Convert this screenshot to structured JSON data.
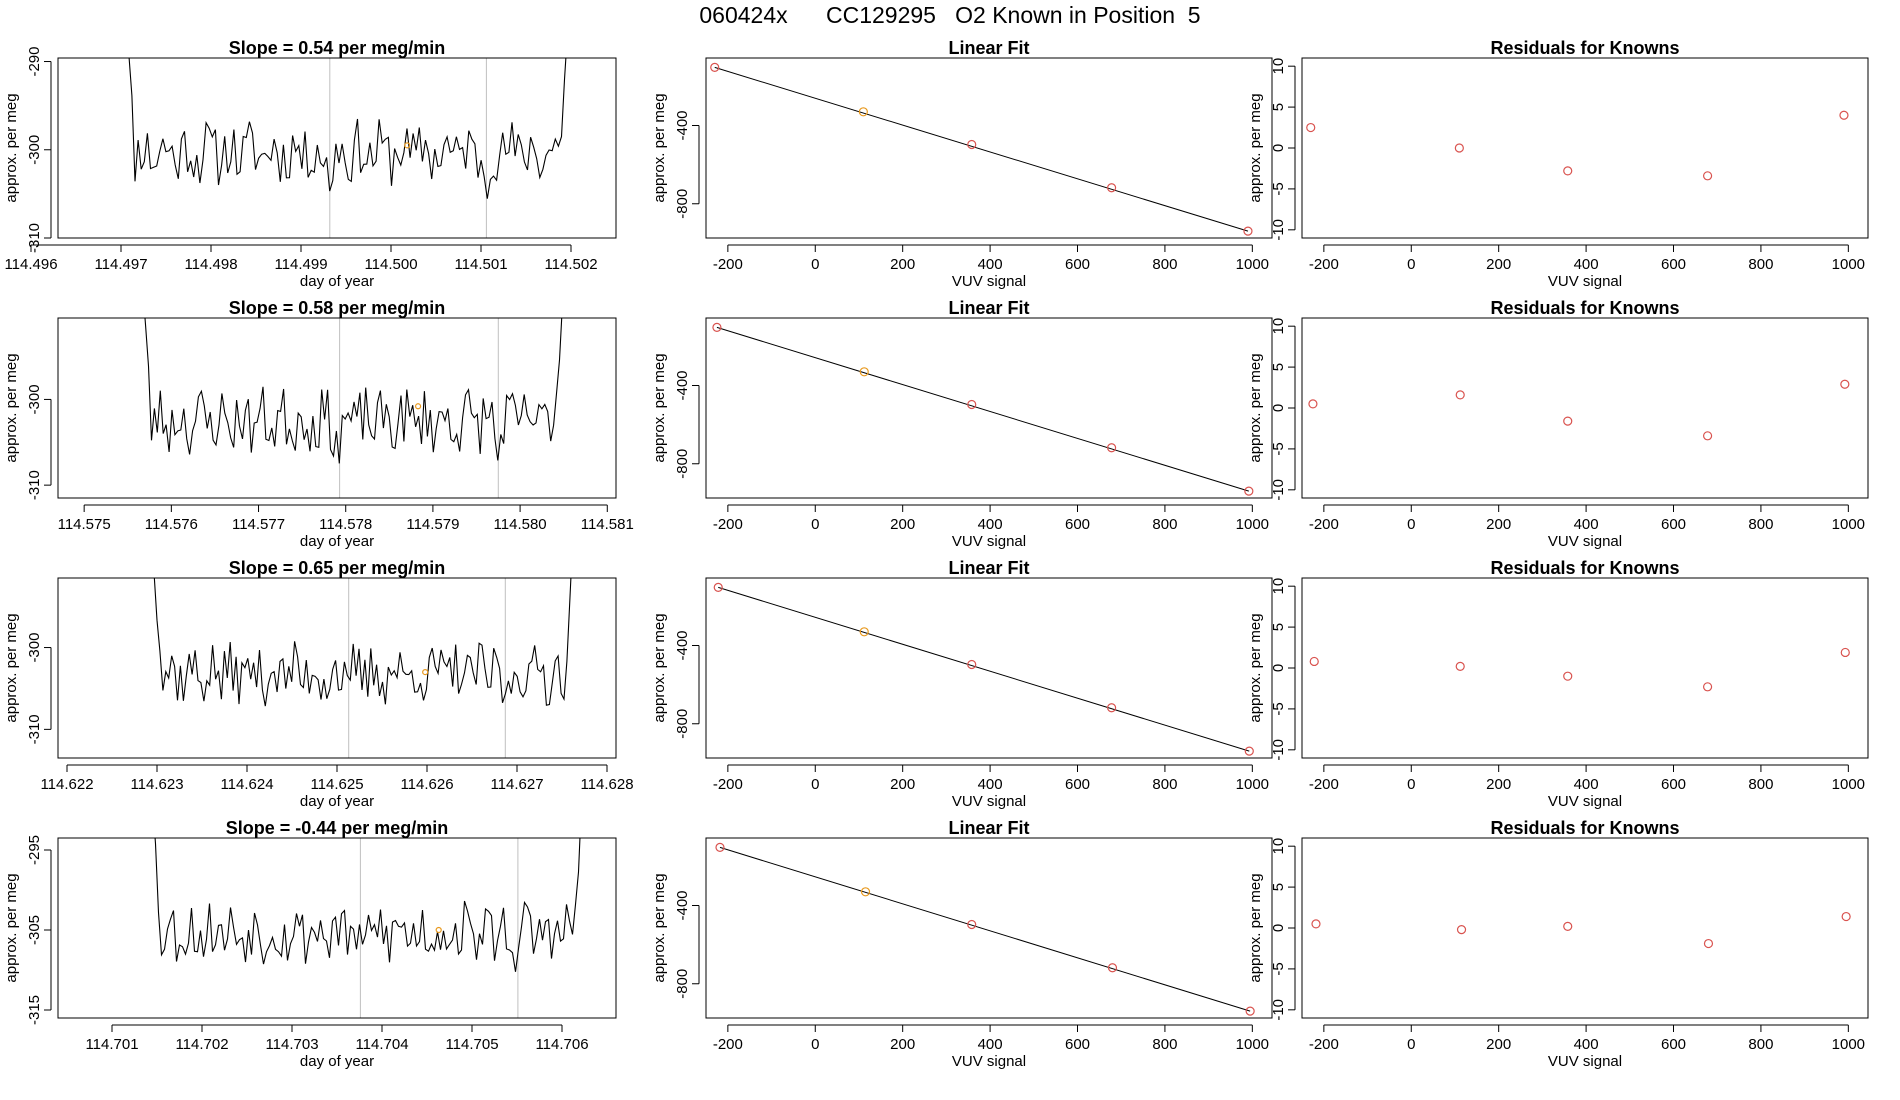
{
  "title": "060424x      CC129295   O2 Known in Position  5",
  "colors": {
    "line": "#000000",
    "known_point": "#e8991e",
    "residual_point": "#d9534f",
    "vline": "#c0c0c0",
    "axis": "#000000"
  },
  "chart_data": [
    {
      "type": "line",
      "title": "Slope =  0.54  per meg/min",
      "xlabel": "day of year",
      "ylabel": "approx. per meg",
      "xlim": [
        114.4963,
        114.5025
      ],
      "ylim": [
        -310,
        -289.6
      ],
      "xticks": [
        "114.496",
        "114.497",
        "114.498",
        "114.499",
        "114.500",
        "114.501",
        "114.502"
      ],
      "xtick_values": [
        114.496,
        114.497,
        114.498,
        114.499,
        114.5,
        114.501,
        114.502
      ],
      "yticks": [
        "-290",
        "-300",
        "-310"
      ],
      "ytick_values": [
        -290,
        -300,
        -310
      ],
      "x_start": 114.49695,
      "x_end": 114.5021,
      "trace_seed": 11,
      "trace_mean": -300.3,
      "trace_amp": 3.2,
      "vlines": [
        114.49932,
        114.50106
      ],
      "marker": {
        "x": 114.50018,
        "y": -299.5
      }
    },
    {
      "type": "scatter",
      "title": "Linear Fit",
      "xlabel": "VUV signal",
      "ylabel": "approx. per meg",
      "xlim": [
        -250,
        1045
      ],
      "ylim": [
        -975,
        -55
      ],
      "xticks": [
        "-200",
        "0",
        "200",
        "400",
        "600",
        "800",
        "1000"
      ],
      "xtick_values": [
        -200,
        0,
        200,
        400,
        600,
        800,
        1000
      ],
      "yticks": [
        "-400",
        "-800"
      ],
      "ytick_values": [
        -400,
        -800
      ],
      "x": [
        -230,
        110,
        358,
        678,
        990
      ],
      "y": [
        -103,
        -330,
        -497,
        -718,
        -940
      ],
      "highlight_index": 1,
      "fit": {
        "x": [
          -230,
          990
        ],
        "y": [
          -103,
          -940
        ]
      }
    },
    {
      "type": "scatter",
      "title": "Residuals for Knowns",
      "xlabel": "VUV signal",
      "ylabel": "approx. per meg",
      "xlim": [
        -250,
        1045
      ],
      "ylim": [
        -11,
        11
      ],
      "xticks": [
        "-200",
        "0",
        "200",
        "400",
        "600",
        "800",
        "1000"
      ],
      "xtick_values": [
        -200,
        0,
        200,
        400,
        600,
        800,
        1000
      ],
      "yticks": [
        "10",
        "5",
        "0",
        "-5",
        "-10"
      ],
      "ytick_values": [
        10,
        5,
        0,
        -5,
        -10
      ],
      "x": [
        -230,
        110,
        358,
        678,
        990
      ],
      "y": [
        2.5,
        0,
        -2.8,
        -3.4,
        4.0
      ]
    },
    {
      "type": "line",
      "title": "Slope =  0.58  per meg/min",
      "xlabel": "day of year",
      "ylabel": "approx. per meg",
      "xlim": [
        114.5747,
        114.5811
      ],
      "ylim": [
        -311.5,
        -290.5
      ],
      "xticks": [
        "114.575",
        "114.576",
        "114.577",
        "114.578",
        "114.579",
        "114.580",
        "114.581"
      ],
      "xtick_values": [
        114.575,
        114.576,
        114.577,
        114.578,
        114.579,
        114.58,
        114.581
      ],
      "yticks": [
        "-300",
        "-310"
      ],
      "ytick_values": [
        -300,
        -310
      ],
      "x_start": 114.57557,
      "x_end": 114.58062,
      "trace_seed": 23,
      "trace_mean": -302.5,
      "trace_amp": 3.4,
      "vlines": [
        114.57793,
        114.57975
      ],
      "marker": {
        "x": 114.57883,
        "y": -300.8
      }
    },
    {
      "type": "scatter",
      "title": "Linear Fit",
      "xlabel": "VUV signal",
      "ylabel": "approx. per meg",
      "xlim": [
        -250,
        1045
      ],
      "ylim": [
        -975,
        -55
      ],
      "xticks": [
        "-200",
        "0",
        "200",
        "400",
        "600",
        "800",
        "1000"
      ],
      "xtick_values": [
        -200,
        0,
        200,
        400,
        600,
        800,
        1000
      ],
      "yticks": [
        "-400",
        "-800"
      ],
      "ytick_values": [
        -400,
        -800
      ],
      "x": [
        -225,
        112,
        358,
        678,
        992
      ],
      "y": [
        -103,
        -330,
        -497,
        -718,
        -940
      ],
      "highlight_index": 1,
      "fit": {
        "x": [
          -225,
          992
        ],
        "y": [
          -103,
          -940
        ]
      }
    },
    {
      "type": "scatter",
      "title": "Residuals for Knowns",
      "xlabel": "VUV signal",
      "ylabel": "approx. per meg",
      "xlim": [
        -250,
        1045
      ],
      "ylim": [
        -11,
        11
      ],
      "xticks": [
        "-200",
        "0",
        "200",
        "400",
        "600",
        "800",
        "1000"
      ],
      "xtick_values": [
        -200,
        0,
        200,
        400,
        600,
        800,
        1000
      ],
      "yticks": [
        "10",
        "5",
        "0",
        "-5",
        "-10"
      ],
      "ytick_values": [
        10,
        5,
        0,
        -5,
        -10
      ],
      "x": [
        -225,
        112,
        358,
        678,
        992
      ],
      "y": [
        0.5,
        1.6,
        -1.6,
        -3.4,
        2.9
      ]
    },
    {
      "type": "line",
      "title": "Slope =  0.65  per meg/min",
      "xlabel": "day of year",
      "ylabel": "approx. per meg",
      "xlim": [
        114.6219,
        114.6281
      ],
      "ylim": [
        -313.5,
        -291.5
      ],
      "xticks": [
        "114.622",
        "114.623",
        "114.624",
        "114.625",
        "114.626",
        "114.627",
        "114.628"
      ],
      "xtick_values": [
        114.622,
        114.623,
        114.624,
        114.625,
        114.626,
        114.627,
        114.628
      ],
      "yticks": [
        "-300",
        "-310"
      ],
      "ytick_values": [
        -300,
        -310
      ],
      "x_start": 114.62287,
      "x_end": 114.62775,
      "trace_seed": 37,
      "trace_mean": -303.2,
      "trace_amp": 3.4,
      "vlines": [
        114.62513,
        114.62687
      ],
      "marker": {
        "x": 114.62598,
        "y": -303.0
      }
    },
    {
      "type": "scatter",
      "title": "Linear Fit",
      "xlabel": "VUV signal",
      "ylabel": "approx. per meg",
      "xlim": [
        -250,
        1045
      ],
      "ylim": [
        -975,
        -55
      ],
      "xticks": [
        "-200",
        "0",
        "200",
        "400",
        "600",
        "800",
        "1000"
      ],
      "xtick_values": [
        -200,
        0,
        200,
        400,
        600,
        800,
        1000
      ],
      "yticks": [
        "-400",
        "-800"
      ],
      "ytick_values": [
        -400,
        -800
      ],
      "x": [
        -222,
        112,
        358,
        678,
        993
      ],
      "y": [
        -103,
        -330,
        -497,
        -718,
        -940
      ],
      "highlight_index": 1,
      "fit": {
        "x": [
          -222,
          993
        ],
        "y": [
          -103,
          -940
        ]
      }
    },
    {
      "type": "scatter",
      "title": "Residuals for Knowns",
      "xlabel": "VUV signal",
      "ylabel": "approx. per meg",
      "xlim": [
        -250,
        1045
      ],
      "ylim": [
        -11,
        11
      ],
      "xticks": [
        "-200",
        "0",
        "200",
        "400",
        "600",
        "800",
        "1000"
      ],
      "xtick_values": [
        -200,
        0,
        200,
        400,
        600,
        800,
        1000
      ],
      "yticks": [
        "10",
        "5",
        "0",
        "-5",
        "-10"
      ],
      "ytick_values": [
        10,
        5,
        0,
        -5,
        -10
      ],
      "x": [
        -222,
        112,
        358,
        678,
        993
      ],
      "y": [
        0.8,
        0.2,
        -1.0,
        -2.3,
        1.9
      ]
    },
    {
      "type": "line",
      "title": "Slope =  -0.44  per meg/min",
      "xlabel": "day of year",
      "ylabel": "approx. per meg",
      "xlim": [
        114.7004,
        114.7066
      ],
      "ylim": [
        -316,
        -293.5
      ],
      "xticks": [
        "114.701",
        "114.702",
        "114.703",
        "114.704",
        "114.705",
        "114.706"
      ],
      "xtick_values": [
        114.701,
        114.702,
        114.703,
        114.704,
        114.705,
        114.706
      ],
      "yticks": [
        "-295",
        "-305",
        "-315"
      ],
      "ytick_values": [
        -295,
        -305,
        -315
      ],
      "x_start": 114.70135,
      "x_end": 114.70635,
      "trace_seed": 53,
      "trace_mean": -305.3,
      "trace_amp": 3.5,
      "vlines": [
        114.70376,
        114.70551
      ],
      "marker": {
        "x": 114.70463,
        "y": -305.0
      }
    },
    {
      "type": "scatter",
      "title": "Linear Fit",
      "xlabel": "VUV signal",
      "ylabel": "approx. per meg",
      "xlim": [
        -250,
        1045
      ],
      "ylim": [
        -975,
        -55
      ],
      "xticks": [
        "-200",
        "0",
        "200",
        "400",
        "600",
        "800",
        "1000"
      ],
      "xtick_values": [
        -200,
        0,
        200,
        400,
        600,
        800,
        1000
      ],
      "yticks": [
        "-400",
        "-800"
      ],
      "ytick_values": [
        -400,
        -800
      ],
      "x": [
        -218,
        115,
        358,
        680,
        995
      ],
      "y": [
        -103,
        -330,
        -497,
        -718,
        -940
      ],
      "highlight_index": 1,
      "fit": {
        "x": [
          -218,
          995
        ],
        "y": [
          -103,
          -940
        ]
      }
    },
    {
      "type": "scatter",
      "title": "Residuals for Knowns",
      "xlabel": "VUV signal",
      "ylabel": "approx. per meg",
      "xlim": [
        -250,
        1045
      ],
      "ylim": [
        -11,
        11
      ],
      "xticks": [
        "-200",
        "0",
        "200",
        "400",
        "600",
        "800",
        "1000"
      ],
      "xtick_values": [
        -200,
        0,
        200,
        400,
        600,
        800,
        1000
      ],
      "yticks": [
        "10",
        "5",
        "0",
        "-5",
        "-10"
      ],
      "ytick_values": [
        10,
        5,
        0,
        -5,
        -10
      ],
      "x": [
        -218,
        115,
        358,
        680,
        995
      ],
      "y": [
        0.5,
        -0.2,
        0.2,
        -1.9,
        1.4
      ]
    }
  ]
}
